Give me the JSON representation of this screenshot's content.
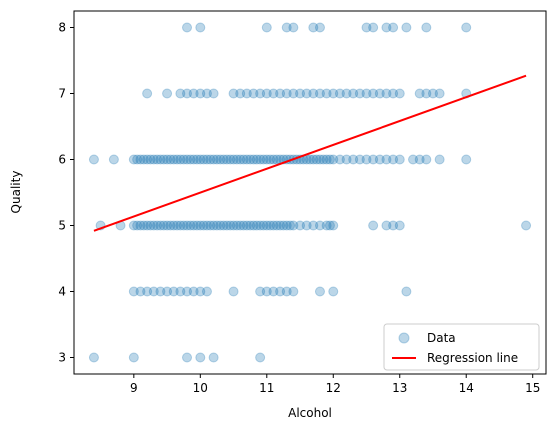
{
  "chart_data": {
    "type": "scatter",
    "xlabel": "Alcohol",
    "ylabel": "Quality",
    "xlim": [
      8.1,
      15.2
    ],
    "ylim": [
      2.75,
      8.25
    ],
    "xticks": [
      9,
      10,
      11,
      12,
      13,
      14,
      15
    ],
    "yticks": [
      3,
      4,
      5,
      6,
      7,
      8
    ],
    "grid": false,
    "legend_position": "lower-right",
    "series": [
      {
        "name": "Data",
        "kind": "scatter",
        "color": "#1f77b4",
        "alpha": 0.3,
        "x_values_by_quality": {
          "3": [
            8.4,
            9.0,
            9.8,
            10.0,
            10.2,
            10.9
          ],
          "4": [
            9.0,
            9.1,
            9.2,
            9.3,
            9.4,
            9.5,
            9.6,
            9.7,
            9.8,
            9.9,
            10.0,
            10.1,
            10.5,
            10.9,
            11.0,
            11.1,
            11.2,
            11.3,
            11.4,
            11.8,
            12.0,
            13.1
          ],
          "5": [
            8.5,
            8.8,
            9.0,
            9.05,
            9.1,
            9.15,
            9.2,
            9.25,
            9.3,
            9.35,
            9.4,
            9.45,
            9.5,
            9.55,
            9.6,
            9.65,
            9.7,
            9.75,
            9.8,
            9.85,
            9.9,
            9.95,
            10.0,
            10.05,
            10.1,
            10.15,
            10.2,
            10.25,
            10.3,
            10.35,
            10.4,
            10.45,
            10.5,
            10.55,
            10.6,
            10.65,
            10.7,
            10.75,
            10.8,
            10.85,
            10.9,
            10.95,
            11.0,
            11.05,
            11.1,
            11.15,
            11.2,
            11.25,
            11.3,
            11.35,
            11.4,
            11.5,
            11.6,
            11.7,
            11.8,
            11.9,
            11.95,
            12.0,
            12.6,
            12.8,
            12.9,
            13.0,
            14.9
          ],
          "6": [
            8.4,
            8.7,
            9.0,
            9.05,
            9.1,
            9.15,
            9.2,
            9.25,
            9.3,
            9.35,
            9.4,
            9.45,
            9.5,
            9.55,
            9.6,
            9.65,
            9.7,
            9.75,
            9.8,
            9.85,
            9.9,
            9.95,
            10.0,
            10.05,
            10.1,
            10.15,
            10.2,
            10.25,
            10.3,
            10.35,
            10.4,
            10.45,
            10.5,
            10.55,
            10.6,
            10.65,
            10.7,
            10.75,
            10.8,
            10.85,
            10.9,
            10.95,
            11.0,
            11.05,
            11.1,
            11.15,
            11.2,
            11.25,
            11.3,
            11.35,
            11.4,
            11.45,
            11.5,
            11.55,
            11.6,
            11.65,
            11.7,
            11.75,
            11.8,
            11.85,
            11.9,
            11.95,
            12.0,
            12.1,
            12.2,
            12.3,
            12.4,
            12.5,
            12.6,
            12.7,
            12.8,
            12.9,
            13.0,
            13.2,
            13.3,
            13.4,
            13.6,
            14.0
          ],
          "7": [
            9.2,
            9.5,
            9.7,
            9.8,
            9.9,
            10.0,
            10.1,
            10.2,
            10.5,
            10.6,
            10.7,
            10.8,
            10.9,
            11.0,
            11.1,
            11.2,
            11.3,
            11.4,
            11.5,
            11.6,
            11.7,
            11.8,
            11.9,
            12.0,
            12.1,
            12.2,
            12.3,
            12.4,
            12.5,
            12.6,
            12.7,
            12.8,
            12.9,
            13.0,
            13.3,
            13.4,
            13.5,
            13.6,
            14.0
          ],
          "8": [
            9.8,
            10.0,
            11.0,
            11.3,
            11.4,
            11.7,
            11.8,
            12.5,
            12.6,
            12.8,
            12.9,
            13.1,
            13.4,
            14.0
          ]
        }
      },
      {
        "name": "Regression line",
        "kind": "line",
        "color": "#ff0000",
        "x": [
          8.4,
          14.9
        ],
        "y": [
          4.92,
          7.27
        ]
      }
    ]
  }
}
